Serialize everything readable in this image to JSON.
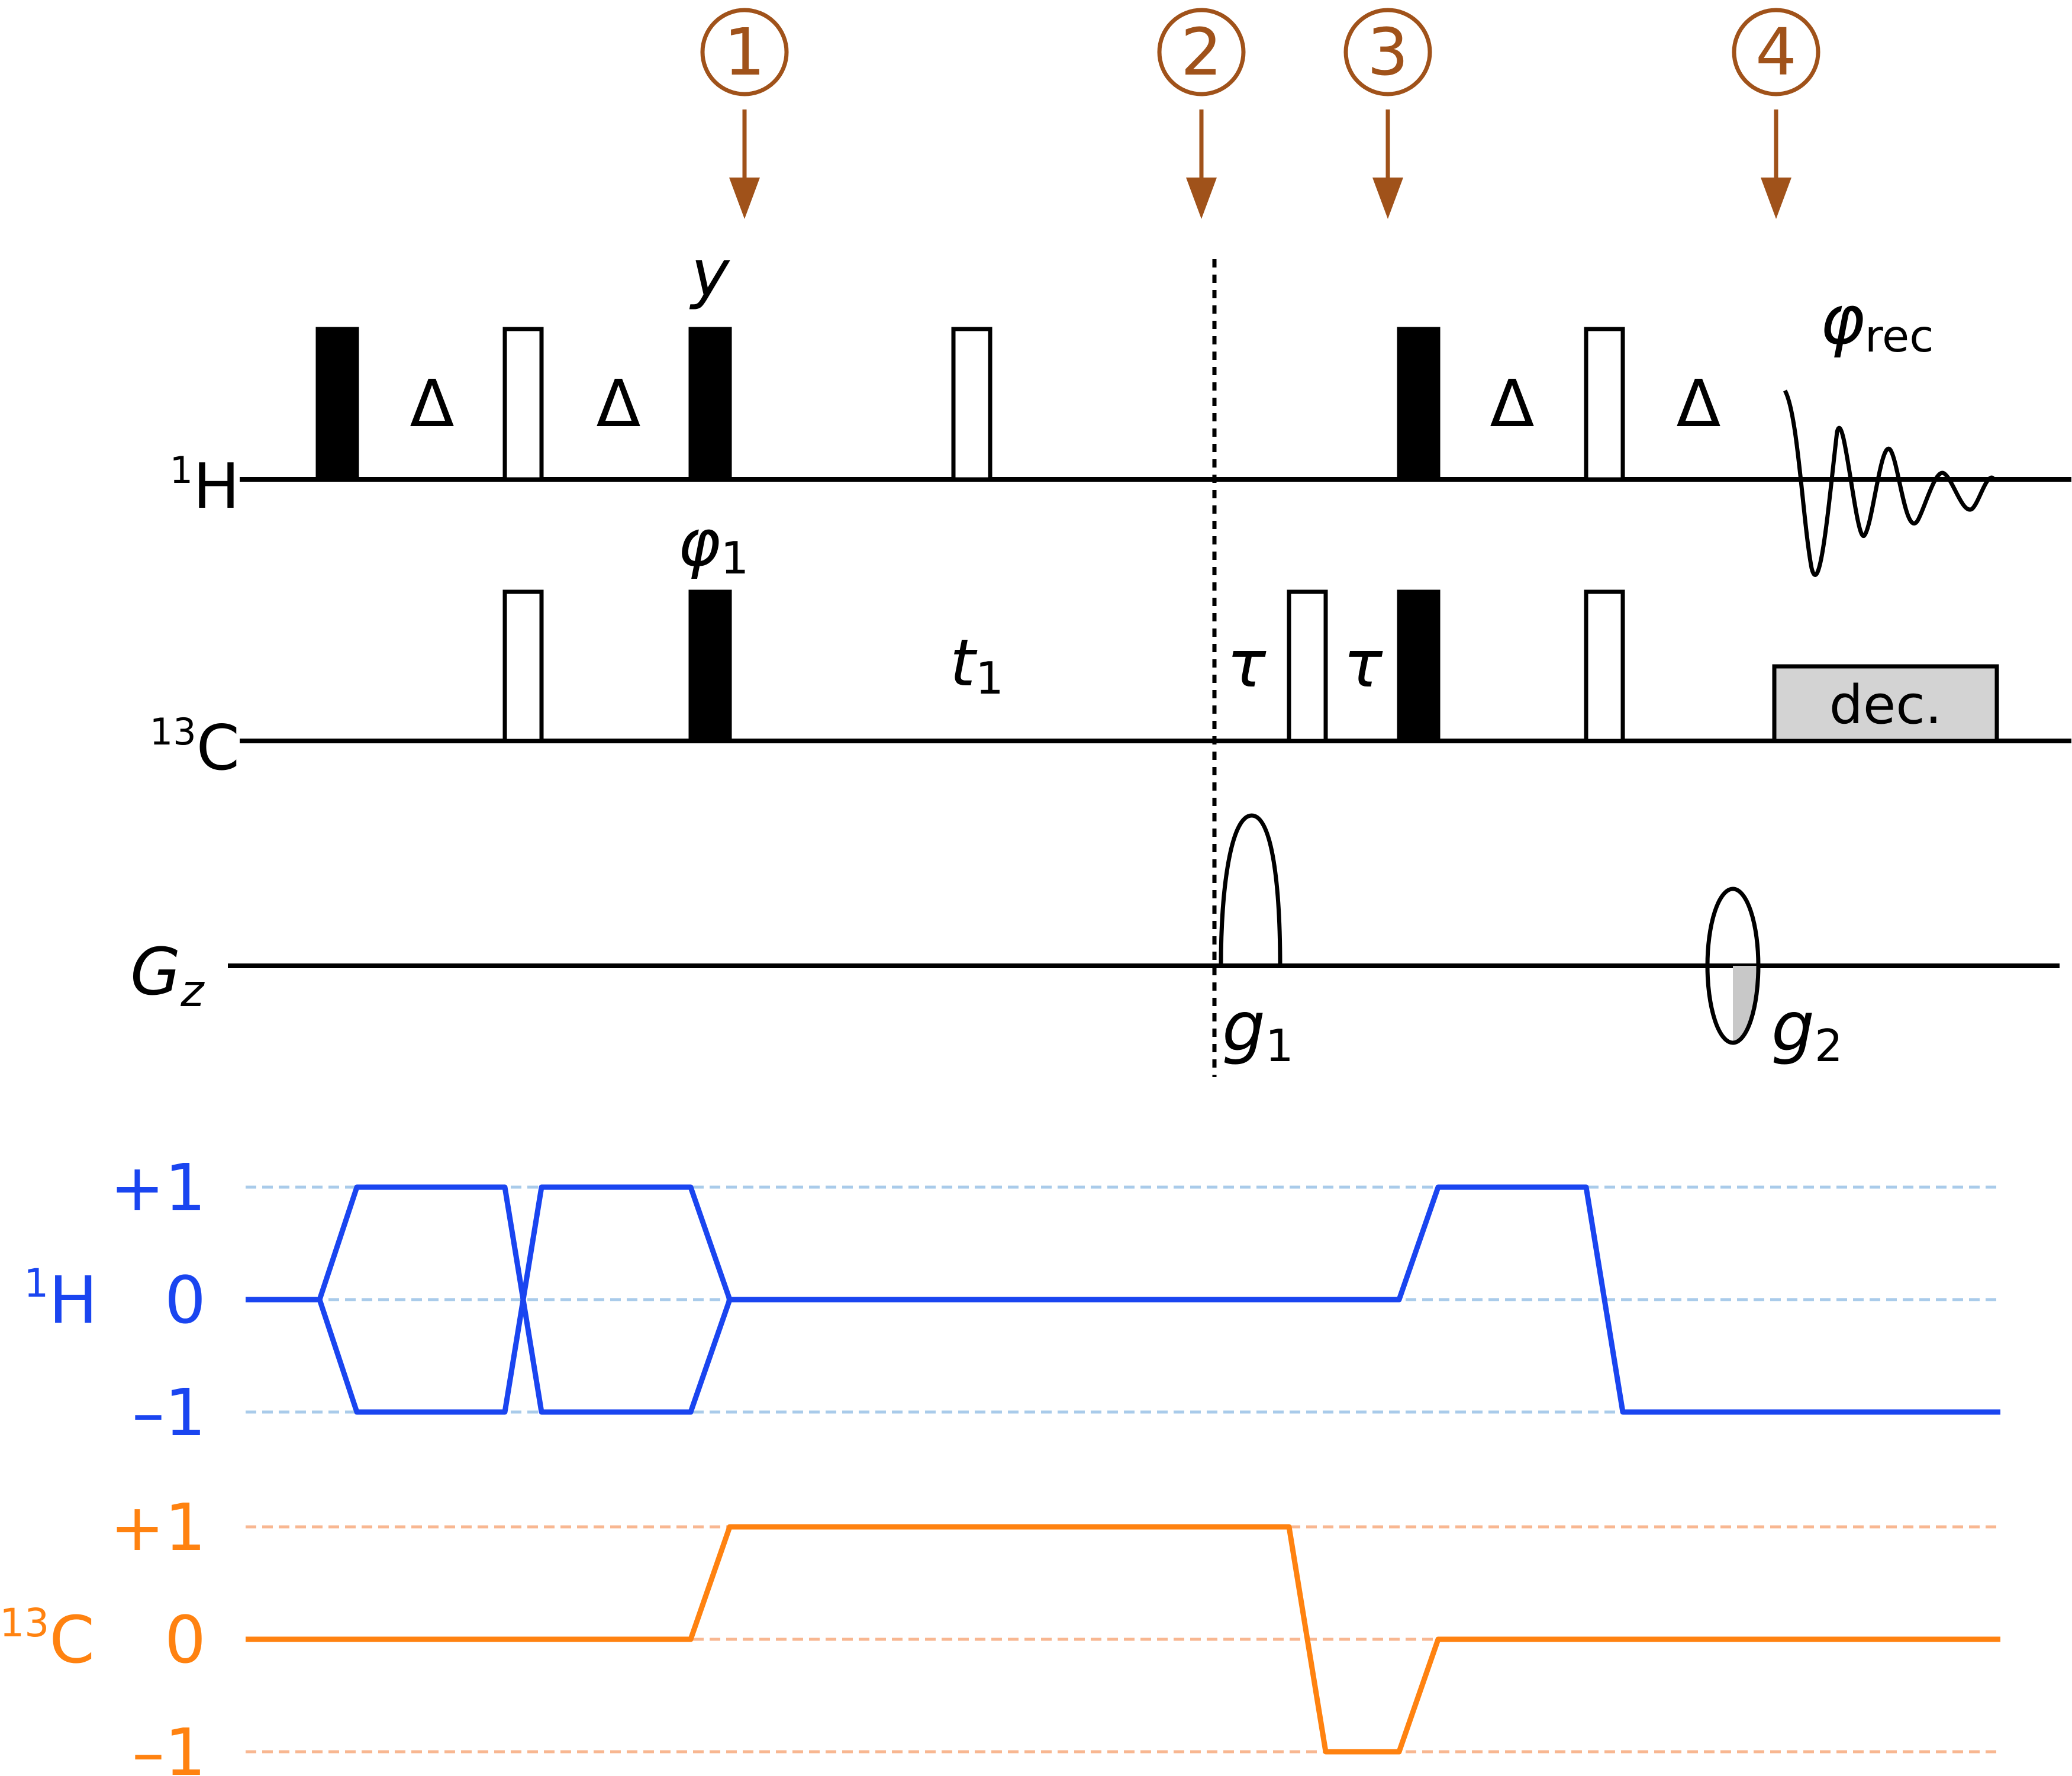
{
  "markers": [
    {
      "label": "1"
    },
    {
      "label": "2"
    },
    {
      "label": "3"
    },
    {
      "label": "4"
    }
  ],
  "channels": {
    "proton": {
      "prefix": "1",
      "label": "H"
    },
    "carbon": {
      "prefix": "13",
      "label": "C"
    },
    "gradient": {
      "label": "G",
      "sub": "z"
    }
  },
  "delays": {
    "delta": "Δ",
    "tau": "τ",
    "t1": {
      "main": "t",
      "sub": "1"
    }
  },
  "phases": {
    "y": "y",
    "phi1": {
      "main": "φ",
      "sub": "1"
    },
    "phi_rec": {
      "main": "φ",
      "sub": "rec"
    }
  },
  "decoupling": "dec.",
  "gradients": {
    "g1": {
      "main": "g",
      "sub": "1"
    },
    "g2": {
      "main": "g",
      "sub": "2"
    }
  },
  "coherence": {
    "proton": {
      "prefix": "1",
      "label": "H",
      "levels": [
        "+1",
        "0",
        "–1"
      ]
    },
    "carbon": {
      "prefix": "13",
      "label": "C",
      "levels": [
        "+1",
        "0",
        "–1"
      ]
    }
  },
  "colors": {
    "marker": "#A0521A",
    "proton_path": "#1A45F0",
    "proton_guide": "#A9CBEA",
    "carbon_path": "#FF8210",
    "carbon_guide": "#F8B791",
    "dec_fill": "#D3D3D3",
    "g2_fill": "#C8C8C8"
  }
}
